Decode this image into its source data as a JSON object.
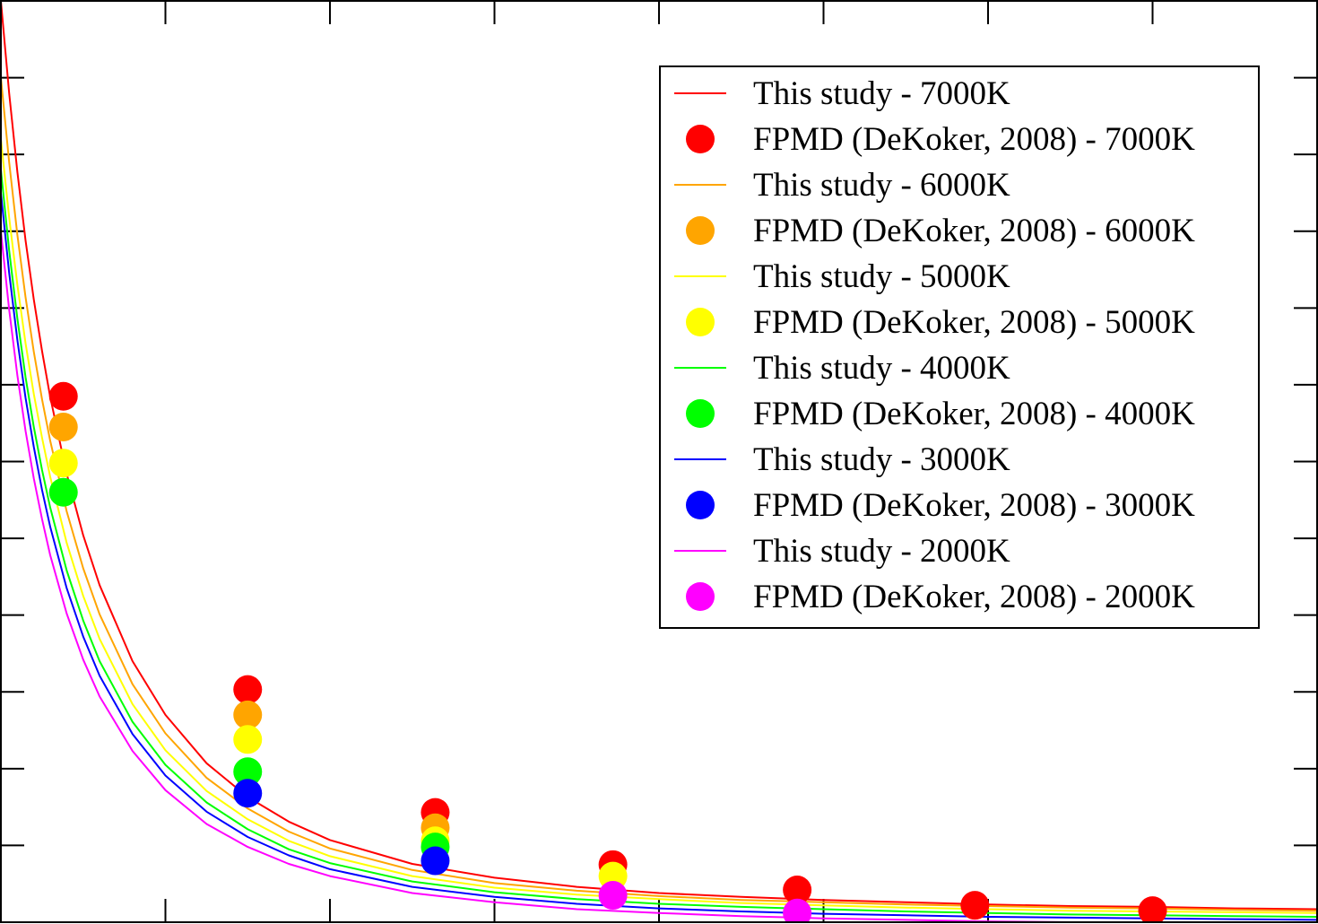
{
  "chart_data": {
    "type": "line",
    "title": "",
    "xlabel": "",
    "ylabel": "",
    "xlim": [
      0,
      8
    ],
    "ylim": [
      0,
      12
    ],
    "x_ticks": [
      0,
      1,
      2,
      3,
      4,
      5,
      6,
      7,
      8
    ],
    "y_ticks": [
      0,
      1,
      2,
      3,
      4,
      5,
      6,
      7,
      8,
      9,
      10,
      11,
      12
    ],
    "grid": false,
    "legend_position": "top-right",
    "series": [
      {
        "name": "This study - 7000K",
        "kind": "line",
        "color": "#ff0000",
        "x": [
          0.0,
          0.05,
          0.1,
          0.15,
          0.2,
          0.25,
          0.3,
          0.4,
          0.5,
          0.6,
          0.8,
          1.0,
          1.25,
          1.5,
          1.75,
          2.0,
          2.5,
          3.0,
          3.5,
          4.0,
          4.5,
          5.0,
          5.5,
          6.0,
          6.5,
          7.0,
          7.5,
          8.0
        ],
        "y": [
          12.0,
          10.8,
          9.77,
          8.88,
          8.11,
          7.44,
          6.84,
          5.84,
          5.04,
          4.39,
          3.4,
          2.7,
          2.07,
          1.63,
          1.31,
          1.07,
          0.76,
          0.58,
          0.46,
          0.38,
          0.33,
          0.29,
          0.26,
          0.23,
          0.21,
          0.2,
          0.18,
          0.17
        ]
      },
      {
        "name": "FPMD (DeKoker, 2008) - 7000K",
        "kind": "scatter",
        "color": "#ff0000",
        "x": [
          0.38,
          1.5,
          2.64,
          3.72,
          4.84,
          5.92,
          7.0
        ],
        "y": [
          6.85,
          3.03,
          1.43,
          0.75,
          0.42,
          0.22,
          0.15
        ]
      },
      {
        "name": "This study - 6000K",
        "kind": "line",
        "color": "#ffa500",
        "x": [
          0.0,
          0.05,
          0.1,
          0.15,
          0.2,
          0.25,
          0.3,
          0.4,
          0.5,
          0.6,
          0.8,
          1.0,
          1.25,
          1.5,
          1.75,
          2.0,
          2.5,
          3.0,
          3.5,
          4.0,
          4.5,
          5.0,
          5.5,
          6.0,
          6.5,
          7.0,
          7.5,
          8.0
        ],
        "y": [
          11.0,
          9.9,
          8.95,
          8.14,
          7.43,
          6.81,
          6.27,
          5.35,
          4.61,
          4.01,
          3.1,
          2.46,
          1.88,
          1.48,
          1.18,
          0.96,
          0.68,
          0.51,
          0.41,
          0.34,
          0.29,
          0.26,
          0.23,
          0.21,
          0.19,
          0.18,
          0.16,
          0.15
        ]
      },
      {
        "name": "FPMD (DeKoker, 2008) - 6000K",
        "kind": "scatter",
        "color": "#ffa500",
        "x": [
          0.38,
          1.5,
          2.64
        ],
        "y": [
          6.45,
          2.7,
          1.23
        ]
      },
      {
        "name": "This study - 5000K",
        "kind": "line",
        "color": "#ffff00",
        "x": [
          0.0,
          0.05,
          0.1,
          0.15,
          0.2,
          0.25,
          0.3,
          0.4,
          0.5,
          0.6,
          0.8,
          1.0,
          1.25,
          1.5,
          1.75,
          2.0,
          2.5,
          3.0,
          3.5,
          4.0,
          4.5,
          5.0,
          5.5,
          6.0,
          6.5,
          7.0,
          7.5,
          8.0
        ],
        "y": [
          10.2,
          9.18,
          8.3,
          7.54,
          6.88,
          6.31,
          5.8,
          4.94,
          4.25,
          3.69,
          2.84,
          2.24,
          1.71,
          1.34,
          1.06,
          0.86,
          0.6,
          0.45,
          0.36,
          0.3,
          0.25,
          0.22,
          0.19,
          0.17,
          0.15,
          0.14,
          0.13,
          0.12
        ]
      },
      {
        "name": "FPMD (DeKoker, 2008) - 5000K",
        "kind": "scatter",
        "color": "#ffff00",
        "x": [
          0.38,
          1.5,
          2.64,
          3.72
        ],
        "y": [
          5.98,
          2.38,
          1.06,
          0.6
        ]
      },
      {
        "name": "This study - 4000K",
        "kind": "line",
        "color": "#00ff00",
        "x": [
          0.0,
          0.05,
          0.1,
          0.15,
          0.2,
          0.25,
          0.3,
          0.4,
          0.5,
          0.6,
          0.8,
          1.0,
          1.25,
          1.5,
          1.75,
          2.0,
          2.5,
          3.0,
          3.5,
          4.0,
          4.5,
          5.0,
          5.5,
          6.0,
          6.5,
          7.0,
          7.5,
          8.0
        ],
        "y": [
          9.8,
          8.75,
          7.86,
          7.1,
          6.45,
          5.89,
          5.4,
          4.58,
          3.93,
          3.4,
          2.61,
          2.05,
          1.56,
          1.21,
          0.95,
          0.77,
          0.53,
          0.39,
          0.3,
          0.24,
          0.2,
          0.17,
          0.14,
          0.12,
          0.1,
          0.09,
          0.08,
          0.07
        ]
      },
      {
        "name": "FPMD (DeKoker, 2008) - 4000K",
        "kind": "scatter",
        "color": "#00ff00",
        "x": [
          0.38,
          1.5,
          2.64
        ],
        "y": [
          5.6,
          1.96,
          0.98
        ]
      },
      {
        "name": "This study - 3000K",
        "kind": "line",
        "color": "#0000ff",
        "x": [
          0.0,
          0.05,
          0.1,
          0.15,
          0.2,
          0.25,
          0.3,
          0.4,
          0.5,
          0.6,
          0.8,
          1.0,
          1.25,
          1.5,
          1.75,
          2.0,
          2.5,
          3.0,
          3.5,
          4.0,
          4.5,
          5.0,
          5.5,
          6.0,
          6.5,
          7.0,
          7.5,
          8.0
        ],
        "y": [
          9.5,
          8.46,
          7.58,
          6.83,
          6.19,
          5.63,
          5.15,
          4.35,
          3.72,
          3.21,
          2.45,
          1.91,
          1.44,
          1.11,
          0.87,
          0.69,
          0.46,
          0.33,
          0.24,
          0.18,
          0.14,
          0.11,
          0.09,
          0.07,
          0.06,
          0.05,
          0.04,
          0.03
        ]
      },
      {
        "name": "FPMD (DeKoker, 2008) - 3000K",
        "kind": "scatter",
        "color": "#0000ff",
        "x": [
          1.5,
          2.64
        ],
        "y": [
          1.68,
          0.8
        ]
      },
      {
        "name": "This study - 2000K",
        "kind": "line",
        "color": "#ff00ff",
        "x": [
          0.0,
          0.05,
          0.1,
          0.15,
          0.2,
          0.25,
          0.3,
          0.4,
          0.5,
          0.6,
          0.8,
          1.0,
          1.25,
          1.5,
          1.75,
          2.0,
          2.5,
          3.0,
          3.5,
          4.0,
          4.5,
          5.0,
          5.5,
          6.0,
          6.5,
          7.0,
          7.5,
          8.0
        ],
        "y": [
          9.0,
          7.98,
          7.12,
          6.4,
          5.78,
          5.25,
          4.78,
          4.02,
          3.42,
          2.94,
          2.23,
          1.72,
          1.28,
          0.98,
          0.76,
          0.6,
          0.38,
          0.26,
          0.17,
          0.12,
          0.08,
          0.05,
          0.03,
          0.01,
          0.0,
          0.0,
          0.0,
          0.0
        ]
      },
      {
        "name": "FPMD (DeKoker, 2008) - 2000K",
        "kind": "scatter",
        "color": "#ff00ff",
        "x": [
          3.72,
          4.84
        ],
        "y": [
          0.35,
          0.12
        ]
      }
    ]
  }
}
